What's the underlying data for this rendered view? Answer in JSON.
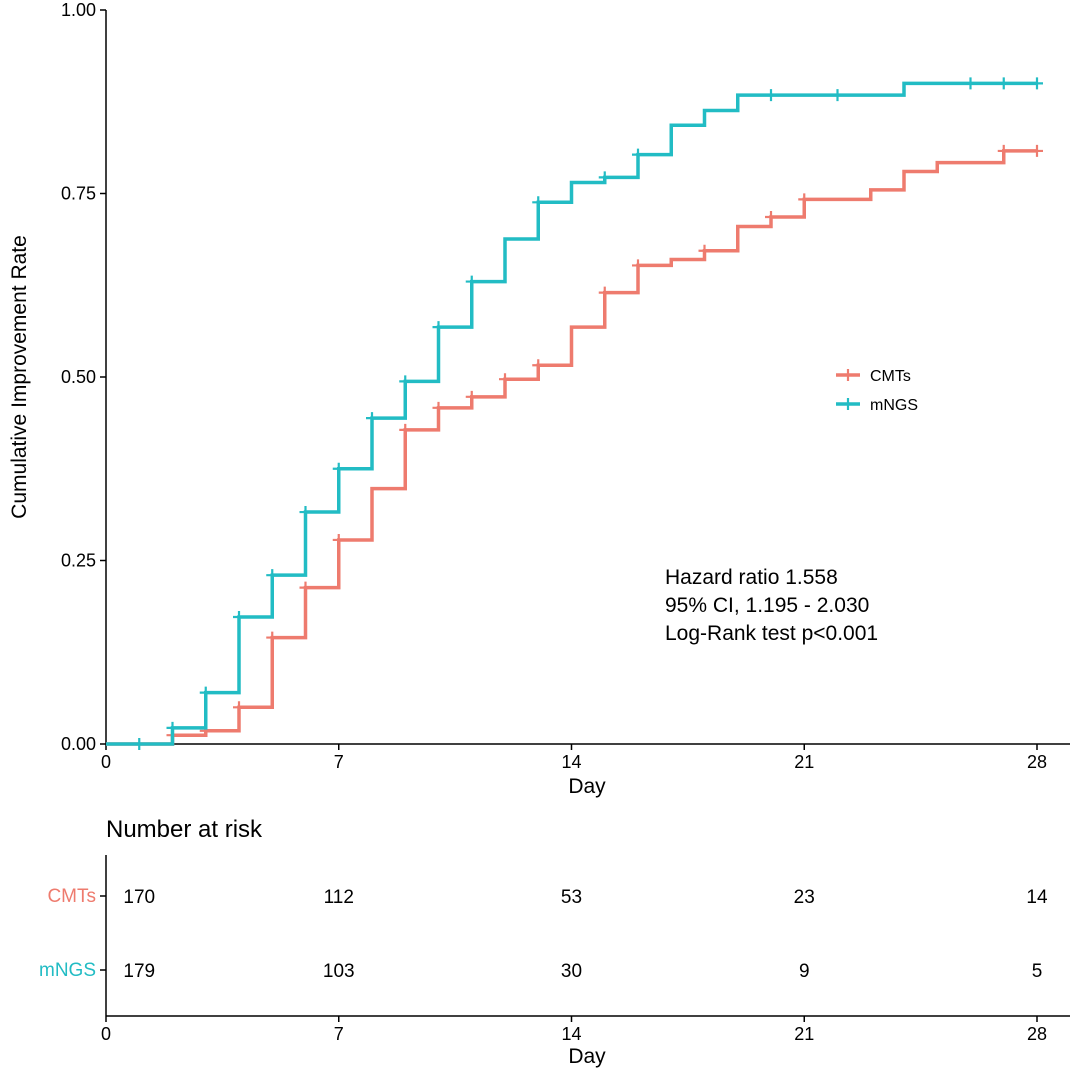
{
  "chart_data": [
    {
      "type": "line",
      "subtype": "kaplan-meier-step",
      "title": "",
      "xlabel": "Day",
      "ylabel": "Cumulative Improvement Rate",
      "xlim": [
        0,
        28
      ],
      "ylim": [
        0,
        1
      ],
      "xticks": [
        0,
        7,
        14,
        21,
        28
      ],
      "xtick_labels": [
        "0",
        "7",
        "14",
        "21",
        "28"
      ],
      "yticks": [
        0,
        0.25,
        0.5,
        0.75,
        1.0
      ],
      "ytick_labels": [
        "0.00",
        "0.25",
        "0.50",
        "0.75",
        "1.00"
      ],
      "legend_position": "right",
      "series": [
        {
          "name": "CMTs",
          "color": "#EE7B6E",
          "x": [
            0,
            2,
            3,
            4,
            5,
            6,
            7,
            8,
            9,
            10,
            11,
            12,
            13,
            14,
            15,
            16,
            17,
            18,
            19,
            20,
            21,
            22,
            23,
            24,
            25,
            26,
            27,
            28
          ],
          "y": [
            0,
            0.012,
            0.018,
            0.05,
            0.145,
            0.213,
            0.278,
            0.348,
            0.428,
            0.458,
            0.473,
            0.497,
            0.516,
            0.568,
            0.615,
            0.652,
            0.66,
            0.672,
            0.705,
            0.718,
            0.742,
            0.742,
            0.755,
            0.78,
            0.792,
            0.792,
            0.808,
            0.808
          ],
          "censor_x": [
            2,
            3,
            4,
            5,
            6,
            7,
            9,
            10,
            11,
            12,
            13,
            15,
            16,
            18,
            20,
            21,
            27,
            28
          ],
          "censor_y": [
            0.012,
            0.018,
            0.05,
            0.145,
            0.213,
            0.278,
            0.428,
            0.458,
            0.473,
            0.497,
            0.516,
            0.615,
            0.652,
            0.672,
            0.718,
            0.742,
            0.808,
            0.808
          ]
        },
        {
          "name": "mNGS",
          "color": "#22BCC4",
          "x": [
            0,
            2,
            3,
            4,
            5,
            6,
            7,
            8,
            9,
            10,
            11,
            12,
            13,
            14,
            15,
            16,
            17,
            18,
            19,
            20,
            21,
            22,
            23,
            24,
            25,
            26,
            27,
            28
          ],
          "y": [
            0,
            0.022,
            0.07,
            0.173,
            0.23,
            0.316,
            0.375,
            0.444,
            0.494,
            0.568,
            0.63,
            0.688,
            0.738,
            0.765,
            0.772,
            0.803,
            0.843,
            0.863,
            0.884,
            0.884,
            0.884,
            0.884,
            0.884,
            0.9,
            0.9,
            0.9,
            0.9,
            0.9
          ],
          "censor_x": [
            1,
            2,
            3,
            4,
            5,
            6,
            7,
            8,
            9,
            10,
            11,
            13,
            15,
            16,
            20,
            22,
            26,
            27,
            28
          ],
          "censor_y": [
            0,
            0.022,
            0.07,
            0.173,
            0.23,
            0.316,
            0.375,
            0.444,
            0.494,
            0.568,
            0.63,
            0.738,
            0.772,
            0.803,
            0.884,
            0.884,
            0.9,
            0.9,
            0.9
          ]
        }
      ],
      "annotations": [
        "Hazard ratio  1.558",
        "95% CI,  1.195 - 2.030",
        "Log-Rank test p<0.001"
      ]
    },
    {
      "type": "table",
      "title": "Number at risk",
      "xlabel": "Day",
      "xlim": [
        0,
        28
      ],
      "xticks": [
        0,
        7,
        14,
        21,
        28
      ],
      "xtick_labels": [
        "0",
        "7",
        "14",
        "21",
        "28"
      ],
      "rows": [
        {
          "name": "CMTs",
          "color": "#EE7B6E",
          "days": [
            1,
            7,
            14,
            21,
            28
          ],
          "values": [
            "170",
            "112",
            "53",
            "23",
            "14"
          ]
        },
        {
          "name": "mNGS",
          "color": "#22BCC4",
          "days": [
            1,
            7,
            14,
            21,
            28
          ],
          "values": [
            "179",
            "103",
            "30",
            "9",
            "5"
          ]
        }
      ]
    }
  ]
}
